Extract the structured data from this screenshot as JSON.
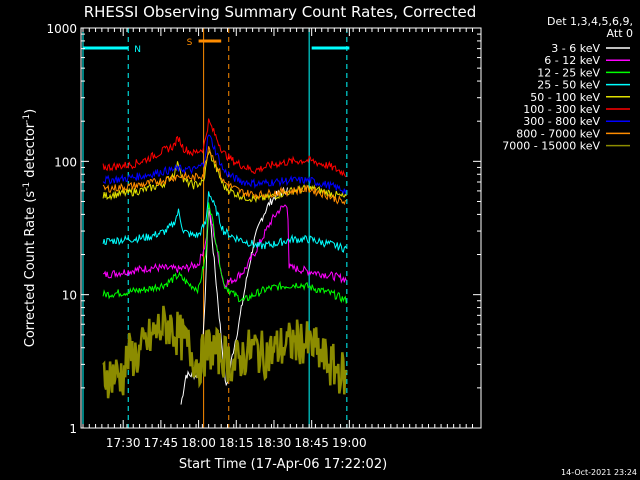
{
  "chart_data": {
    "type": "line",
    "title": "RHESSI Observing Summary Count Rates, Corrected",
    "xlabel": "Start Time (17-Apr-06 17:22:02)",
    "ylabel_main": "Corrected Count Rate (s",
    "ylabel_sup1": "-1",
    "ylabel_mid": " detector",
    "ylabel_sup2": "-1",
    "ylabel_end": ")",
    "y_scale": "log",
    "ylim": [
      1,
      1000
    ],
    "xlim_min": [
      -8,
      148
    ],
    "x_start": "17:22:02",
    "x_ticks": [
      {
        "label": "17:30",
        "min": 8
      },
      {
        "label": "17:45",
        "min": 23
      },
      {
        "label": "18:00",
        "min": 38
      },
      {
        "label": "18:15",
        "min": 53
      },
      {
        "label": "18:30",
        "min": 68
      },
      {
        "label": "18:45",
        "min": 83
      },
      {
        "label": "19:00",
        "min": 98
      }
    ],
    "y_ticks": [
      {
        "label": "1",
        "v": 1
      },
      {
        "label": "10",
        "v": 10
      },
      {
        "label": "100",
        "v": 100
      },
      {
        "label": "1000",
        "v": 1000
      }
    ],
    "legend_header": [
      "Det 1,3,4,5,6,9,",
      "Att 0"
    ],
    "legend_placement": "right",
    "series": [
      {
        "name": "3 - 6 keV",
        "color": "#ffffff"
      },
      {
        "name": "6 - 12 keV",
        "color": "#ff00ff"
      },
      {
        "name": "12 - 25 keV",
        "color": "#00ff00"
      },
      {
        "name": "25 - 50 keV",
        "color": "#00ffff"
      },
      {
        "name": "50 - 100 keV",
        "color": "#e0e000"
      },
      {
        "name": "100 - 300 keV",
        "color": "#ff0000"
      },
      {
        "name": "300 - 800 keV",
        "color": "#0000ff"
      },
      {
        "name": "800 - 7000 keV",
        "color": "#ff8c00"
      },
      {
        "name": "7000 - 15000 keV",
        "color": "#8c8c00"
      }
    ],
    "series_values": {
      "3 - 6 keV": [
        [
          31,
          1.5
        ],
        [
          33,
          2.5
        ],
        [
          38,
          2.5
        ],
        [
          39,
          3.5
        ],
        [
          40,
          5
        ],
        [
          41,
          15
        ],
        [
          42,
          50
        ],
        [
          48,
          3
        ],
        [
          49,
          2
        ],
        [
          50,
          2.5
        ],
        [
          52,
          4
        ],
        [
          54,
          6
        ],
        [
          56,
          10
        ],
        [
          58,
          16
        ],
        [
          60,
          25
        ],
        [
          63,
          37
        ],
        [
          66,
          48
        ],
        [
          69,
          56
        ],
        [
          72,
          60
        ],
        [
          73.5,
          62
        ]
      ],
      "6 - 12 keV": [
        [
          0,
          14
        ],
        [
          10,
          15
        ],
        [
          20,
          16
        ],
        [
          30,
          15.5
        ],
        [
          34,
          16
        ],
        [
          38,
          17
        ],
        [
          41,
          25
        ],
        [
          42,
          45
        ],
        [
          48,
          12
        ],
        [
          52,
          13
        ],
        [
          56,
          15
        ],
        [
          60,
          20
        ],
        [
          64,
          28
        ],
        [
          67,
          36
        ],
        [
          70,
          43
        ],
        [
          73.5,
          48
        ],
        [
          74,
          16
        ],
        [
          82,
          15
        ],
        [
          90,
          14
        ],
        [
          97,
          13
        ]
      ],
      "12 - 25 keV": [
        [
          0,
          10
        ],
        [
          10,
          10.5
        ],
        [
          18,
          11
        ],
        [
          25,
          12
        ],
        [
          30,
          14
        ],
        [
          34,
          12
        ],
        [
          38,
          11
        ],
        [
          41,
          20
        ],
        [
          42,
          52
        ],
        [
          48,
          12
        ],
        [
          52,
          10
        ],
        [
          56,
          9
        ],
        [
          60,
          10
        ],
        [
          65,
          11
        ],
        [
          70,
          11.5
        ],
        [
          78,
          12
        ],
        [
          85,
          11
        ],
        [
          92,
          10
        ],
        [
          97,
          9
        ]
      ],
      "25 - 50 keV": [
        [
          0,
          25
        ],
        [
          10,
          26
        ],
        [
          18,
          27
        ],
        [
          25,
          30
        ],
        [
          28,
          34
        ],
        [
          30,
          42
        ],
        [
          32,
          30
        ],
        [
          35,
          28
        ],
        [
          38,
          28
        ],
        [
          41,
          35
        ],
        [
          42,
          60
        ],
        [
          48,
          30
        ],
        [
          52,
          27
        ],
        [
          57,
          25
        ],
        [
          62,
          23
        ],
        [
          68,
          24
        ],
        [
          75,
          26
        ],
        [
          82,
          26
        ],
        [
          90,
          24
        ],
        [
          97,
          22
        ]
      ],
      "50 - 100 keV": [
        [
          0,
          55
        ],
        [
          10,
          58
        ],
        [
          18,
          62
        ],
        [
          24,
          68
        ],
        [
          28,
          80
        ],
        [
          30,
          98
        ],
        [
          32,
          72
        ],
        [
          36,
          66
        ],
        [
          40,
          70
        ],
        [
          42,
          120
        ],
        [
          48,
          65
        ],
        [
          52,
          58
        ],
        [
          56,
          54
        ],
        [
          62,
          52
        ],
        [
          68,
          55
        ],
        [
          75,
          60
        ],
        [
          82,
          63
        ],
        [
          90,
          58
        ],
        [
          97,
          53
        ]
      ],
      "100 - 300 keV": [
        [
          0,
          90
        ],
        [
          6,
          92
        ],
        [
          12,
          95
        ],
        [
          18,
          105
        ],
        [
          24,
          120
        ],
        [
          28,
          130
        ],
        [
          30,
          150
        ],
        [
          32,
          125
        ],
        [
          36,
          115
        ],
        [
          40,
          125
        ],
        [
          42,
          200
        ],
        [
          48,
          115
        ],
        [
          52,
          100
        ],
        [
          56,
          92
        ],
        [
          60,
          85
        ],
        [
          64,
          90
        ],
        [
          68,
          95
        ],
        [
          75,
          100
        ],
        [
          82,
          102
        ],
        [
          90,
          92
        ],
        [
          97,
          80
        ]
      ],
      "300 - 800 keV": [
        [
          0,
          72
        ],
        [
          8,
          74
        ],
        [
          16,
          78
        ],
        [
          24,
          84
        ],
        [
          30,
          88
        ],
        [
          36,
          86
        ],
        [
          40,
          95
        ],
        [
          42,
          160
        ],
        [
          48,
          85
        ],
        [
          52,
          75
        ],
        [
          56,
          70
        ],
        [
          62,
          68
        ],
        [
          68,
          70
        ],
        [
          75,
          72
        ],
        [
          82,
          72
        ],
        [
          90,
          66
        ],
        [
          97,
          60
        ]
      ],
      "800 - 7000 keV": [
        [
          0,
          62
        ],
        [
          8,
          64
        ],
        [
          16,
          67
        ],
        [
          24,
          72
        ],
        [
          30,
          78
        ],
        [
          36,
          75
        ],
        [
          40,
          80
        ],
        [
          42,
          130
        ],
        [
          48,
          70
        ],
        [
          52,
          63
        ],
        [
          56,
          58
        ],
        [
          62,
          56
        ],
        [
          68,
          58
        ],
        [
          75,
          60
        ],
        [
          82,
          62
        ],
        [
          90,
          55
        ],
        [
          97,
          48
        ]
      ],
      "7000 - 15000 keV": [
        [
          0,
          2.5
        ],
        [
          4,
          2.5
        ],
        [
          8,
          2.5
        ],
        [
          10,
          3.5
        ],
        [
          14,
          3.5
        ],
        [
          18,
          4.5
        ],
        [
          22,
          5.5
        ],
        [
          26,
          6
        ],
        [
          30,
          5
        ],
        [
          34,
          4
        ],
        [
          38,
          3
        ],
        [
          40,
          3.5
        ],
        [
          42,
          4
        ],
        [
          48,
          3.5
        ],
        [
          52,
          3
        ],
        [
          56,
          3.5
        ],
        [
          60,
          4
        ],
        [
          64,
          3.5
        ],
        [
          70,
          4
        ],
        [
          78,
          4.5
        ],
        [
          84,
          4
        ],
        [
          90,
          3
        ],
        [
          96,
          2.5
        ],
        [
          97,
          2
        ]
      ]
    },
    "annotations": [
      {
        "label": "N",
        "color": "#00ffff",
        "x_from": -8,
        "x_to": 10
      },
      {
        "label": "S",
        "color": "#ff8c00",
        "x_from": 38,
        "x_to": 47
      },
      {
        "label": "",
        "color": "#00ffff",
        "x_from": 83,
        "x_to": 98
      }
    ],
    "vlines": [
      {
        "min": -8,
        "color": "#00ffff",
        "style": "solid"
      },
      {
        "min": 10,
        "color": "#00ffff",
        "style": "dashed"
      },
      {
        "min": 40,
        "color": "#ff8c00",
        "style": "solid"
      },
      {
        "min": 50,
        "color": "#ff8c00",
        "style": "dashed"
      },
      {
        "min": 82,
        "color": "#00ffff",
        "style": "solid"
      },
      {
        "min": 97,
        "color": "#00ffff",
        "style": "dashed"
      }
    ],
    "timestamp": "14-Oct-2021 23:24"
  }
}
